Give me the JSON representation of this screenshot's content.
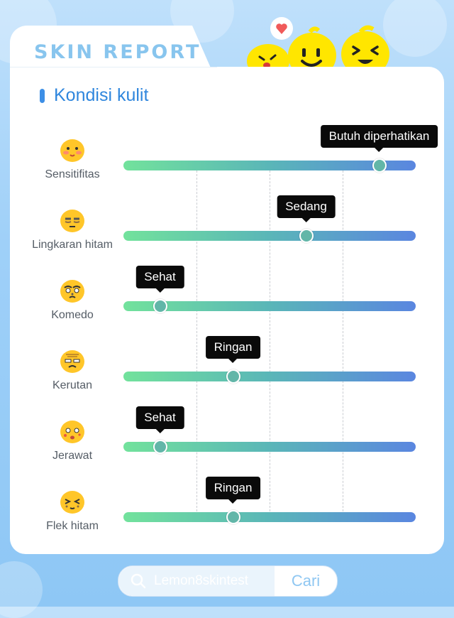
{
  "header": {
    "title": "SKIN REPORT"
  },
  "section": {
    "title": "Kondisi kulit"
  },
  "colors": {
    "accent": "#2f86dd",
    "tooltip_bg": "#0a0a0a",
    "track_start": "#72e29c",
    "track_end": "#5a86e0"
  },
  "conditions": [
    {
      "label": "Sensitifitas",
      "level": "Butuh diperhatikan",
      "value": 0.875,
      "face": "sensitive-face-icon"
    },
    {
      "label": "Lingkaran hitam",
      "level": "Sedang",
      "value": 0.625,
      "face": "dark-circle-face-icon"
    },
    {
      "label": "Komedo",
      "level": "Sehat",
      "value": 0.125,
      "face": "blackhead-face-icon"
    },
    {
      "label": "Kerutan",
      "level": "Ringan",
      "value": 0.375,
      "face": "wrinkle-face-icon"
    },
    {
      "label": "Jerawat",
      "level": "Sehat",
      "value": 0.125,
      "face": "acne-face-icon"
    },
    {
      "label": "Flek hitam",
      "level": "Ringan",
      "value": 0.375,
      "face": "dark-spot-face-icon"
    }
  ],
  "search": {
    "query": "Lemon8skintest",
    "button_label": "Cari",
    "icon": "search-icon"
  }
}
